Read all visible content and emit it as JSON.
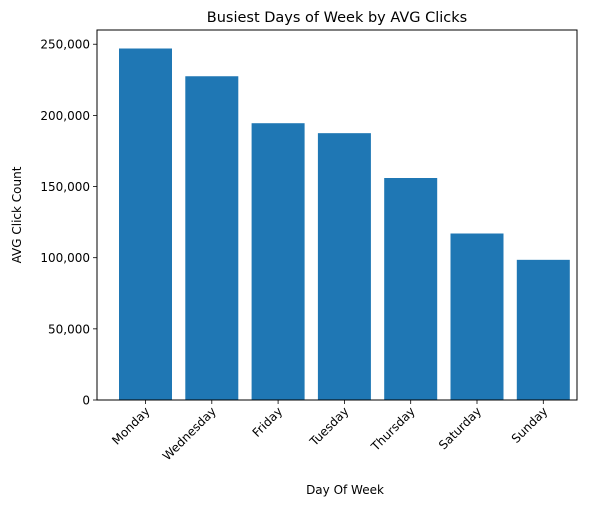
{
  "chart_data": {
    "type": "bar",
    "title": "Busiest Days of Week by AVG Clicks",
    "xlabel": "Day Of Week",
    "ylabel": "AVG Click Count",
    "categories": [
      "Monday",
      "Wednesday",
      "Friday",
      "Tuesday",
      "Thursday",
      "Saturday",
      "Sunday"
    ],
    "values": [
      247000,
      227500,
      194500,
      187500,
      156000,
      117000,
      98500
    ],
    "ylim": [
      0,
      260000
    ],
    "yticks": [
      0,
      50000,
      100000,
      150000,
      200000,
      250000
    ],
    "ytick_labels": [
      "0",
      "50,000",
      "100,000",
      "150,000",
      "200,000",
      "250,000"
    ],
    "bar_color": "#1f77b4",
    "grid": false,
    "xtick_rotation": 45
  }
}
